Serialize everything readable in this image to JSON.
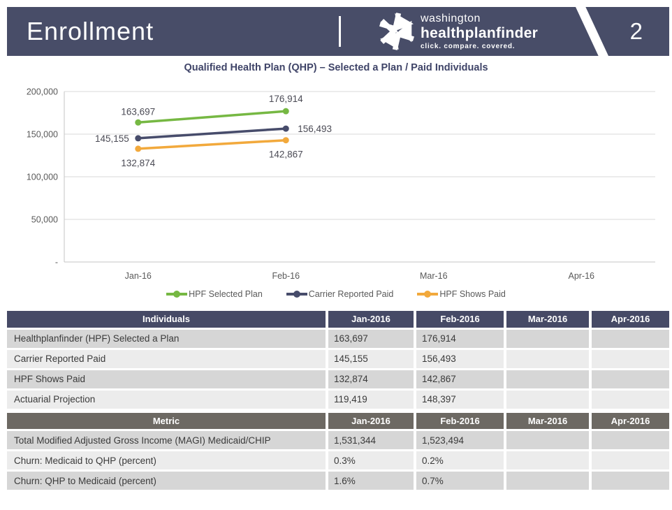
{
  "header": {
    "title": "Enrollment",
    "page_number": "2",
    "bar_color": "#484d68",
    "brand": {
      "top": "washington",
      "name": "healthplanfinder",
      "tagline": "click. compare. covered.",
      "icon": "snowflake-arrows-icon"
    }
  },
  "chart_data": {
    "type": "line",
    "title": "Qualified Health Plan (QHP) – Selected a Plan / Paid Individuals",
    "categories": [
      "Jan-16",
      "Feb-16",
      "Mar-16",
      "Apr-16"
    ],
    "series": [
      {
        "name": "HPF Selected Plan",
        "color": "#76b843",
        "values": [
          163697,
          176914,
          null,
          null
        ]
      },
      {
        "name": "Carrier Reported Paid",
        "color": "#474c6b",
        "values": [
          145155,
          156493,
          null,
          null
        ]
      },
      {
        "name": "HPF Shows Paid",
        "color": "#f2a93c",
        "values": [
          132874,
          142867,
          null,
          null
        ]
      }
    ],
    "ylim": [
      0,
      200000
    ],
    "y_ticks": [
      {
        "value": 200000,
        "label": "200,000"
      },
      {
        "value": 150000,
        "label": "150,000"
      },
      {
        "value": 100000,
        "label": "100,000"
      },
      {
        "value": 50000,
        "label": "50,000"
      },
      {
        "value": 0,
        "label": "-"
      }
    ],
    "grid": true,
    "legend_position": "bottom",
    "data_labels": true,
    "grid_color": "#d9d9d9",
    "axis_color": "#c6c6c6",
    "tick_text_color": "#595959",
    "label_text_color": "#4b4b55"
  },
  "tables": [
    {
      "name": "individuals-table",
      "header_bg": "#464a66",
      "headers": [
        "Individuals",
        "Jan-2016",
        "Feb-2016",
        "Mar-2016",
        "Apr-2016"
      ],
      "rows": [
        [
          "Healthplanfinder (HPF) Selected a Plan",
          "163,697",
          "176,914",
          "",
          ""
        ],
        [
          "Carrier Reported Paid",
          "145,155",
          "156,493",
          "",
          ""
        ],
        [
          "HPF Shows Paid",
          "132,874",
          "142,867",
          "",
          ""
        ],
        [
          "Actuarial Projection",
          "119,419",
          "148,397",
          "",
          ""
        ]
      ]
    },
    {
      "name": "metrics-table",
      "header_bg": "#6d6963",
      "headers": [
        "Metric",
        "Jan-2016",
        "Feb-2016",
        "Mar-2016",
        "Apr-2016"
      ],
      "rows": [
        [
          "Total Modified Adjusted Gross Income (MAGI) Medicaid/CHIP",
          "1,531,344",
          "1,523,494",
          "",
          ""
        ],
        [
          "Churn: Medicaid to QHP (percent)",
          "0.3%",
          "0.2%",
          "",
          ""
        ],
        [
          "Churn: QHP to Medicaid (percent)",
          "1.6%",
          "0.7%",
          "",
          ""
        ]
      ]
    }
  ]
}
